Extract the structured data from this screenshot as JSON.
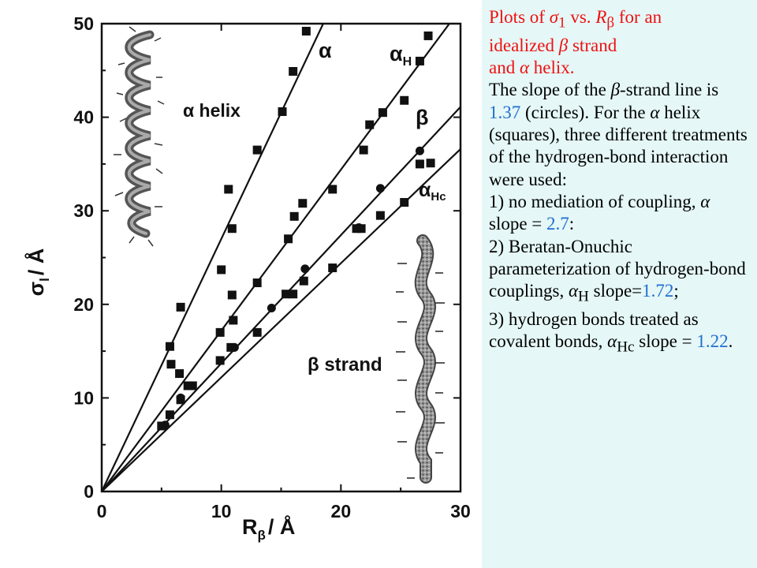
{
  "chart_data": {
    "type": "scatter",
    "xlabel": "R",
    "xlabel_sub": "β",
    "xlabel_unit": "/ Å",
    "ylabel": "σ",
    "ylabel_sub": "l",
    "ylabel_unit": "/ Å",
    "xlim": [
      0,
      30
    ],
    "ylim": [
      0,
      50
    ],
    "x_ticks": [
      0,
      10,
      20,
      30
    ],
    "y_ticks": [
      0,
      10,
      20,
      30,
      40,
      50
    ],
    "grid": false,
    "annotations": {
      "alpha_helix": "α helix",
      "beta_strand": "β strand",
      "alpha": "α",
      "alpha_h": "α",
      "alpha_h_sub": "H",
      "beta": "β",
      "alpha_hc": "α",
      "alpha_hc_sub": "Hc"
    },
    "lines": [
      {
        "label": "α",
        "slope": 2.7
      },
      {
        "label": "αH",
        "slope": 1.72
      },
      {
        "label": "β",
        "slope": 1.37
      },
      {
        "label": "αHc",
        "slope": 1.22
      }
    ],
    "series": [
      {
        "marker": "square",
        "points": [
          [
            5.7,
            15.5
          ],
          [
            6.6,
            19.7
          ],
          [
            10.6,
            32.3
          ],
          [
            10.9,
            28.1
          ],
          [
            13.0,
            36.5
          ],
          [
            15.1,
            40.6
          ],
          [
            16.0,
            44.9
          ],
          [
            17.1,
            49.2
          ],
          [
            5.8,
            13.6
          ],
          [
            6.5,
            12.6
          ],
          [
            7.2,
            11.3
          ],
          [
            7.6,
            11.3
          ],
          [
            9.9,
            17.0
          ],
          [
            10.0,
            23.7
          ],
          [
            10.9,
            21.0
          ],
          [
            11.0,
            18.3
          ],
          [
            13.0,
            22.3
          ],
          [
            15.6,
            27.0
          ],
          [
            16.1,
            29.4
          ],
          [
            16.8,
            30.8
          ],
          [
            19.3,
            32.3
          ],
          [
            21.9,
            36.5
          ],
          [
            22.4,
            39.2
          ],
          [
            23.5,
            40.5
          ],
          [
            25.3,
            41.8
          ],
          [
            26.6,
            46.0
          ],
          [
            27.3,
            48.7
          ],
          [
            5.0,
            7.0
          ],
          [
            5.7,
            8.2
          ],
          [
            6.6,
            9.8
          ],
          [
            9.9,
            14.0
          ],
          [
            10.8,
            15.4
          ],
          [
            13.0,
            17.0
          ],
          [
            15.4,
            21.1
          ],
          [
            16.0,
            21.1
          ],
          [
            16.9,
            22.5
          ],
          [
            19.3,
            23.9
          ],
          [
            21.3,
            28.1
          ],
          [
            21.7,
            28.1
          ],
          [
            23.3,
            29.5
          ],
          [
            25.3,
            30.9
          ],
          [
            26.6,
            35.0
          ],
          [
            27.5,
            35.1
          ]
        ]
      },
      {
        "marker": "circle",
        "points": [
          [
            5.3,
            7.1
          ],
          [
            6.6,
            10.0
          ],
          [
            11.1,
            15.4
          ],
          [
            14.2,
            19.6
          ],
          [
            17.0,
            23.8
          ],
          [
            21.5,
            28.2
          ],
          [
            23.3,
            32.4
          ],
          [
            26.6,
            36.4
          ]
        ]
      }
    ]
  },
  "caption": {
    "title_a": "Plots of ",
    "title_sigma": "σ",
    "title_sigma_sub": "1",
    "title_b": " vs. ",
    "title_r": "R",
    "title_r_sub": "β",
    "title_c": " for an",
    "title_d": "idealized ",
    "title_beta": "β",
    "title_e": " strand",
    "title_f": "and ",
    "title_alpha": "α",
    "title_g": " helix.",
    "body_a": "The slope of the ",
    "body_beta": "β",
    "body_b": "-strand line is ",
    "slope_beta": "1.37",
    "body_c": " (circles). For the ",
    "body_alpha": "α",
    "body_d": " helix (squares), three different treatments of the hydrogen-bond interaction were used:",
    "item1_a": "1) no mediation of coupling, ",
    "item1_alpha": "α",
    "item1_b": " slope = ",
    "slope_alpha": "2.7",
    "item1_c": ":",
    "item2_a": "2) Beratan-Onuchic parameterization of hydrogen-bond couplings, ",
    "item2_alpha": "α",
    "item2_sub": "H",
    "item2_b": " slope=",
    "slope_alpha_h": "1.72",
    "item2_c": ";",
    "item3_a": "3) hydrogen bonds treated as covalent bonds, ",
    "item3_alpha": "α",
    "item3_sub": "Hc",
    "item3_b": " slope = ",
    "slope_alpha_hc": "1.22",
    "item3_c": "."
  }
}
